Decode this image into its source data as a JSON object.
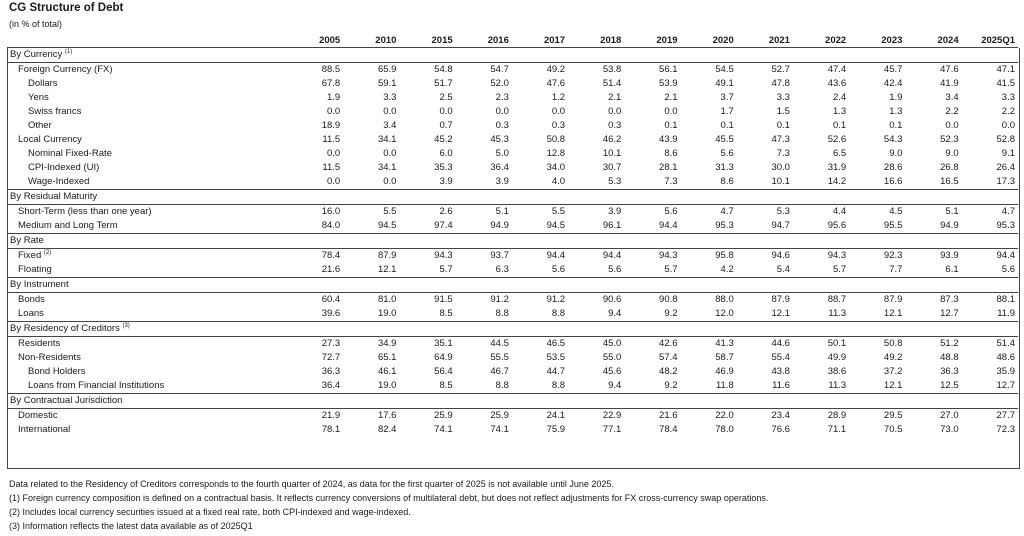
{
  "title": "CG Structure of Debt",
  "subtitle": "(in % of total)",
  "years": [
    "2005",
    "2010",
    "2015",
    "2016",
    "2017",
    "2018",
    "2019",
    "2020",
    "2021",
    "2022",
    "2023",
    "2024",
    "2025Q1"
  ],
  "sections": [
    {
      "label": "By Currency",
      "sup": "(1)",
      "rows": [
        {
          "label": "Foreign Currency (FX)",
          "sup": "",
          "level": 1,
          "values": [
            "88.5",
            "65.9",
            "54.8",
            "54.7",
            "49.2",
            "53.8",
            "56.1",
            "54.5",
            "52.7",
            "47.4",
            "45.7",
            "47.6",
            "47.1"
          ]
        },
        {
          "label": "Dollars",
          "sup": "",
          "level": 2,
          "values": [
            "67.8",
            "59.1",
            "51.7",
            "52.0",
            "47.6",
            "51.4",
            "53.9",
            "49.1",
            "47.8",
            "43.6",
            "42.4",
            "41.9",
            "41.5"
          ]
        },
        {
          "label": "Yens",
          "sup": "",
          "level": 2,
          "values": [
            "1.9",
            "3.3",
            "2.5",
            "2.3",
            "1.2",
            "2.1",
            "2.1",
            "3.7",
            "3.3",
            "2.4",
            "1.9",
            "3.4",
            "3.3"
          ]
        },
        {
          "label": "Swiss francs",
          "sup": "",
          "level": 2,
          "values": [
            "0.0",
            "0.0",
            "0.0",
            "0.0",
            "0.0",
            "0.0",
            "0.0",
            "1.7",
            "1.5",
            "1.3",
            "1.3",
            "2.2",
            "2.2"
          ]
        },
        {
          "label": "Other",
          "sup": "",
          "level": 2,
          "values": [
            "18.9",
            "3.4",
            "0.7",
            "0.3",
            "0.3",
            "0.3",
            "0.1",
            "0.1",
            "0.1",
            "0.1",
            "0.1",
            "0.0",
            "0.0"
          ]
        },
        {
          "label": "Local Currency",
          "sup": "",
          "level": 1,
          "values": [
            "11.5",
            "34.1",
            "45.2",
            "45.3",
            "50.8",
            "46.2",
            "43.9",
            "45.5",
            "47.3",
            "52.6",
            "54.3",
            "52.3",
            "52.8"
          ]
        },
        {
          "label": "Nominal Fixed-Rate",
          "sup": "",
          "level": 2,
          "values": [
            "0.0",
            "0.0",
            "6.0",
            "5.0",
            "12.8",
            "10.1",
            "8.6",
            "5.6",
            "7.3",
            "6.5",
            "9.0",
            "9.0",
            "9.1"
          ]
        },
        {
          "label": "CPI-Indexed (UI)",
          "sup": "",
          "level": 2,
          "values": [
            "11.5",
            "34.1",
            "35.3",
            "36.4",
            "34.0",
            "30.7",
            "28.1",
            "31.3",
            "30.0",
            "31.9",
            "28.6",
            "26.8",
            "26.4"
          ]
        },
        {
          "label": "Wage-Indexed",
          "sup": "",
          "level": 2,
          "values": [
            "0.0",
            "0.0",
            "3.9",
            "3.9",
            "4.0",
            "5.3",
            "7.3",
            "8.6",
            "10.1",
            "14.2",
            "16.6",
            "16.5",
            "17.3"
          ]
        }
      ]
    },
    {
      "label": "By Residual Maturity",
      "sup": "",
      "rows": [
        {
          "label": "Short-Term (less than one year)",
          "sup": "",
          "level": 1,
          "values": [
            "16.0",
            "5.5",
            "2.6",
            "5.1",
            "5.5",
            "3.9",
            "5.6",
            "4.7",
            "5.3",
            "4.4",
            "4.5",
            "5.1",
            "4.7"
          ]
        },
        {
          "label": "Medium and Long Term",
          "sup": "",
          "level": 1,
          "values": [
            "84.0",
            "94.5",
            "97.4",
            "94.9",
            "94.5",
            "96.1",
            "94.4",
            "95.3",
            "94.7",
            "95.6",
            "95.5",
            "94.9",
            "95.3"
          ]
        }
      ]
    },
    {
      "label": "By Rate",
      "sup": "",
      "rows": [
        {
          "label": "Fixed",
          "sup": "(2)",
          "level": 1,
          "values": [
            "78.4",
            "87.9",
            "94.3",
            "93.7",
            "94.4",
            "94.4",
            "94.3",
            "95.8",
            "94.6",
            "94.3",
            "92.3",
            "93.9",
            "94.4"
          ]
        },
        {
          "label": "Floating",
          "sup": "",
          "level": 1,
          "values": [
            "21.6",
            "12.1",
            "5.7",
            "6.3",
            "5.6",
            "5.6",
            "5.7",
            "4.2",
            "5.4",
            "5.7",
            "7.7",
            "6.1",
            "5.6"
          ]
        }
      ]
    },
    {
      "label": "By Instrument",
      "sup": "",
      "rows": [
        {
          "label": "Bonds",
          "sup": "",
          "level": 1,
          "values": [
            "60.4",
            "81.0",
            "91.5",
            "91.2",
            "91.2",
            "90.6",
            "90.8",
            "88.0",
            "87.9",
            "88.7",
            "87.9",
            "87.3",
            "88.1"
          ]
        },
        {
          "label": "Loans",
          "sup": "",
          "level": 1,
          "values": [
            "39.6",
            "19.0",
            "8.5",
            "8.8",
            "8.8",
            "9.4",
            "9.2",
            "12.0",
            "12.1",
            "11.3",
            "12.1",
            "12.7",
            "11.9"
          ]
        }
      ]
    },
    {
      "label": "By Residency of Creditors",
      "sup": "(3)",
      "rows": [
        {
          "label": "Residents",
          "sup": "",
          "level": 1,
          "values": [
            "27.3",
            "34.9",
            "35.1",
            "44.5",
            "46.5",
            "45.0",
            "42.6",
            "41.3",
            "44.6",
            "50.1",
            "50.8",
            "51.2",
            "51.4"
          ]
        },
        {
          "label": "Non-Residents",
          "sup": "",
          "level": 1,
          "values": [
            "72.7",
            "65.1",
            "64.9",
            "55.5",
            "53.5",
            "55.0",
            "57.4",
            "58.7",
            "55.4",
            "49.9",
            "49.2",
            "48.8",
            "48.6"
          ]
        },
        {
          "label": "Bond Holders",
          "sup": "",
          "level": 2,
          "values": [
            "36.3",
            "46.1",
            "56.4",
            "46.7",
            "44.7",
            "45.6",
            "48.2",
            "46.9",
            "43.8",
            "38.6",
            "37.2",
            "36.3",
            "35.9"
          ]
        },
        {
          "label": "Loans from Financial Institutions",
          "sup": "",
          "level": 2,
          "values": [
            "36.4",
            "19.0",
            "8.5",
            "8.8",
            "8.8",
            "9.4",
            "9.2",
            "11.8",
            "11.6",
            "11.3",
            "12.1",
            "12.5",
            "12.7"
          ]
        }
      ]
    },
    {
      "label": "By Contractual Jurisdiction",
      "sup": "",
      "rows": [
        {
          "label": "Domestic",
          "sup": "",
          "level": 1,
          "values": [
            "21.9",
            "17.6",
            "25.9",
            "25.9",
            "24.1",
            "22.9",
            "21.6",
            "22.0",
            "23.4",
            "28.9",
            "29.5",
            "27.0",
            "27.7"
          ]
        },
        {
          "label": "International",
          "sup": "",
          "level": 1,
          "values": [
            "78.1",
            "82.4",
            "74.1",
            "74.1",
            "75.9",
            "77.1",
            "78.4",
            "78.0",
            "76.6",
            "71.1",
            "70.5",
            "73.0",
            "72.3"
          ]
        }
      ]
    }
  ],
  "notes": [
    "Data related to the Residency of Creditors corresponds to the fourth quarter of 2024, as data for the first quarter of 2025 is not available until June 2025.",
    "(1) Foreign currency composition is defined on a contractual basis. It reflects currency conversions of multilateral debt, but does not reflect adjustments for FX cross-currency swap operations.",
    "(2) Includes local currency securities issued at a fixed real rate, both CPI-indexed and wage-indexed.",
    "(3) Information reflects the latest data available as of 2025Q1"
  ]
}
